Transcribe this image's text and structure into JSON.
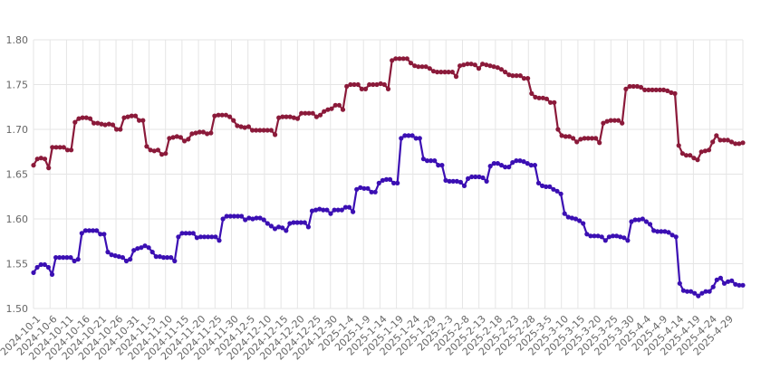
{
  "chart_data": {
    "type": "line",
    "title": "",
    "xlabel": "",
    "ylabel": "",
    "ylim": [
      1.5,
      1.8
    ],
    "yticks": [
      "1.50",
      "1.55",
      "1.60",
      "1.65",
      "1.70",
      "1.75",
      "1.80"
    ],
    "grid": true,
    "legend": "none",
    "x_labels": [
      "2024-10-1",
      "2024-10-6",
      "2024-10-11",
      "2024-10-16",
      "2024-10-21",
      "2024-10-26",
      "2024-10-31",
      "2024-11-5",
      "2024-11-10",
      "2024-11-15",
      "2024-11-20",
      "2024-11-25",
      "2024-11-30",
      "2024-12-5",
      "2024-12-10",
      "2024-12-15",
      "2024-12-20",
      "2024-12-25",
      "2024-12-30",
      "2025-1-4",
      "2025-1-9",
      "2025-1-14",
      "2025-1-19",
      "2025-1-24",
      "2025-1-29",
      "2025-2-3",
      "2025-2-8",
      "2025-2-13",
      "2025-2-18",
      "2025-2-23",
      "2025-2-28",
      "2025-3-5",
      "2025-3-10",
      "2025-3-15",
      "2025-3-20",
      "2025-3-25",
      "2025-3-30",
      "2025-4-4",
      "2025-4-9",
      "2025-4-14",
      "2025-4-19",
      "2025-4-24",
      "2025-4-29"
    ],
    "series": [
      {
        "color": "#8b1a3a",
        "values": [
          1.66,
          1.667,
          1.668,
          1.667,
          1.657,
          1.68,
          1.68,
          1.68,
          1.68,
          1.677,
          1.677,
          1.708,
          1.712,
          1.713,
          1.713,
          1.712,
          1.707,
          1.707,
          1.706,
          1.705,
          1.706,
          1.705,
          1.7,
          1.7,
          1.713,
          1.714,
          1.715,
          1.715,
          1.71,
          1.71,
          1.681,
          1.677,
          1.676,
          1.677,
          1.672,
          1.673,
          1.69,
          1.691,
          1.692,
          1.691,
          1.687,
          1.689,
          1.695,
          1.696,
          1.697,
          1.697,
          1.695,
          1.696,
          1.715,
          1.716,
          1.716,
          1.716,
          1.714,
          1.71,
          1.704,
          1.703,
          1.702,
          1.703,
          1.699,
          1.699,
          1.699,
          1.699,
          1.699,
          1.699,
          1.694,
          1.713,
          1.714,
          1.714,
          1.714,
          1.713,
          1.712,
          1.718,
          1.718,
          1.718,
          1.718,
          1.714,
          1.716,
          1.72,
          1.722,
          1.723,
          1.727,
          1.727,
          1.722,
          1.748,
          1.75,
          1.75,
          1.75,
          1.745,
          1.745,
          1.75,
          1.75,
          1.75,
          1.751,
          1.75,
          1.745,
          1.777,
          1.779,
          1.779,
          1.779,
          1.779,
          1.774,
          1.771,
          1.77,
          1.77,
          1.77,
          1.768,
          1.765,
          1.764,
          1.764,
          1.764,
          1.764,
          1.764,
          1.759,
          1.771,
          1.772,
          1.773,
          1.773,
          1.772,
          1.768,
          1.773,
          1.772,
          1.771,
          1.77,
          1.769,
          1.767,
          1.764,
          1.761,
          1.76,
          1.76,
          1.76,
          1.757,
          1.757,
          1.74,
          1.736,
          1.735,
          1.735,
          1.734,
          1.73,
          1.73,
          1.7,
          1.693,
          1.692,
          1.692,
          1.69,
          1.686,
          1.689,
          1.69,
          1.69,
          1.69,
          1.69,
          1.685,
          1.707,
          1.709,
          1.71,
          1.71,
          1.71,
          1.707,
          1.745,
          1.748,
          1.748,
          1.748,
          1.747,
          1.744,
          1.744,
          1.744,
          1.744,
          1.744,
          1.744,
          1.743,
          1.741,
          1.74,
          1.682,
          1.673,
          1.671,
          1.671,
          1.668,
          1.666,
          1.675,
          1.676,
          1.677,
          1.686,
          1.693,
          1.688,
          1.688,
          1.688,
          1.686,
          1.684,
          1.684,
          1.685
        ]
      },
      {
        "color": "#3b0fb3",
        "values": [
          1.54,
          1.546,
          1.549,
          1.549,
          1.546,
          1.538,
          1.557,
          1.557,
          1.557,
          1.557,
          1.557,
          1.553,
          1.555,
          1.584,
          1.587,
          1.587,
          1.587,
          1.587,
          1.583,
          1.583,
          1.563,
          1.56,
          1.559,
          1.558,
          1.557,
          1.553,
          1.555,
          1.565,
          1.567,
          1.568,
          1.57,
          1.568,
          1.563,
          1.558,
          1.558,
          1.557,
          1.557,
          1.557,
          1.553,
          1.58,
          1.584,
          1.584,
          1.584,
          1.584,
          1.579,
          1.58,
          1.58,
          1.58,
          1.58,
          1.58,
          1.576,
          1.6,
          1.603,
          1.603,
          1.603,
          1.603,
          1.603,
          1.599,
          1.601,
          1.6,
          1.601,
          1.601,
          1.599,
          1.595,
          1.592,
          1.589,
          1.591,
          1.59,
          1.587,
          1.595,
          1.596,
          1.596,
          1.596,
          1.596,
          1.591,
          1.609,
          1.61,
          1.611,
          1.61,
          1.61,
          1.606,
          1.61,
          1.61,
          1.61,
          1.613,
          1.613,
          1.608,
          1.633,
          1.635,
          1.634,
          1.634,
          1.63,
          1.63,
          1.64,
          1.643,
          1.644,
          1.644,
          1.64,
          1.64,
          1.69,
          1.693,
          1.693,
          1.693,
          1.69,
          1.69,
          1.667,
          1.665,
          1.665,
          1.665,
          1.66,
          1.66,
          1.643,
          1.642,
          1.642,
          1.642,
          1.641,
          1.637,
          1.645,
          1.647,
          1.647,
          1.647,
          1.646,
          1.642,
          1.659,
          1.662,
          1.662,
          1.66,
          1.658,
          1.658,
          1.663,
          1.665,
          1.665,
          1.664,
          1.662,
          1.66,
          1.66,
          1.64,
          1.637,
          1.636,
          1.636,
          1.633,
          1.631,
          1.628,
          1.606,
          1.602,
          1.601,
          1.6,
          1.598,
          1.595,
          1.583,
          1.581,
          1.581,
          1.581,
          1.58,
          1.576,
          1.58,
          1.581,
          1.581,
          1.58,
          1.579,
          1.576,
          1.597,
          1.599,
          1.599,
          1.6,
          1.597,
          1.594,
          1.587,
          1.586,
          1.586,
          1.586,
          1.585,
          1.582,
          1.58,
          1.528,
          1.52,
          1.519,
          1.519,
          1.517,
          1.514,
          1.517,
          1.519,
          1.519,
          1.524,
          1.532,
          1.534,
          1.528,
          1.53,
          1.531,
          1.527,
          1.526,
          1.526
        ]
      }
    ]
  }
}
